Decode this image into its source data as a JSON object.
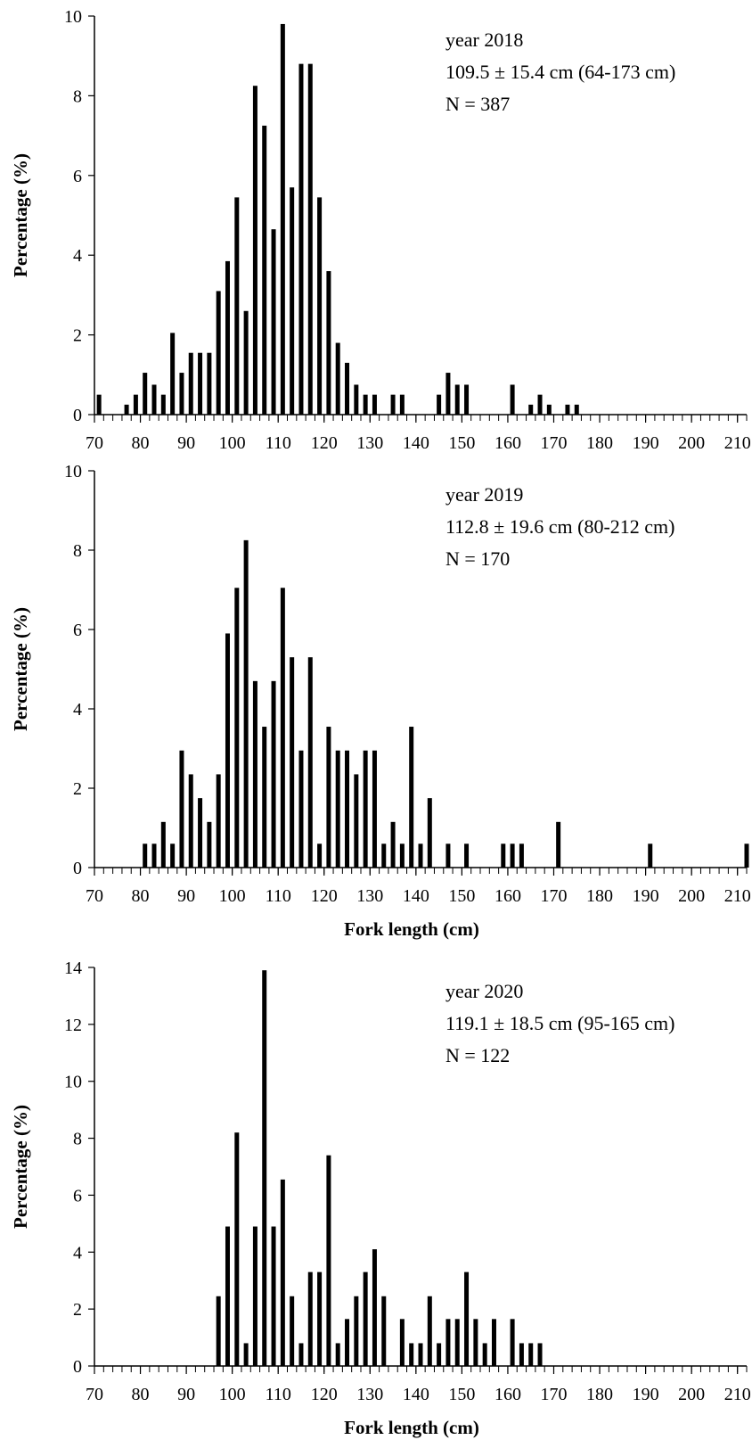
{
  "chart_data": [
    {
      "type": "bar",
      "ylabel": "Percentage (%)",
      "xlabel": "",
      "xlim": [
        70,
        212
      ],
      "ylim": [
        0,
        10
      ],
      "xticks": [
        70,
        80,
        90,
        100,
        110,
        120,
        130,
        140,
        150,
        160,
        170,
        180,
        190,
        200,
        210
      ],
      "yticks": [
        0,
        2,
        4,
        6,
        8,
        10
      ],
      "annotations": [
        "year 2018",
        "109.5 ± 15.4 cm (64-173 cm)",
        "N = 387"
      ],
      "x": [
        71,
        77,
        79,
        81,
        83,
        85,
        87,
        89,
        91,
        93,
        95,
        97,
        99,
        101,
        103,
        105,
        107,
        109,
        111,
        113,
        115,
        117,
        119,
        121,
        123,
        125,
        127,
        129,
        131,
        135,
        137,
        145,
        147,
        149,
        151,
        161,
        165,
        167,
        169,
        173,
        175
      ],
      "values": [
        0.5,
        0.25,
        0.5,
        1.05,
        0.75,
        0.5,
        2.05,
        1.05,
        1.55,
        1.55,
        1.55,
        3.1,
        3.85,
        5.45,
        2.6,
        8.25,
        7.25,
        4.65,
        9.8,
        5.7,
        8.8,
        8.8,
        5.45,
        3.6,
        1.8,
        1.3,
        0.75,
        0.5,
        0.5,
        0.5,
        0.5,
        0.5,
        1.05,
        0.75,
        0.75,
        0.75,
        0.25,
        0.5,
        0.25,
        0.25,
        0.25
      ],
      "grid": false,
      "legend": "none"
    },
    {
      "type": "bar",
      "ylabel": "Percentage (%)",
      "xlabel": "Fork length (cm)",
      "xlim": [
        70,
        212
      ],
      "ylim": [
        0,
        10
      ],
      "xticks": [
        70,
        80,
        90,
        100,
        110,
        120,
        130,
        140,
        150,
        160,
        170,
        180,
        190,
        200,
        210
      ],
      "yticks": [
        0,
        2,
        4,
        6,
        8,
        10
      ],
      "annotations": [
        "year 2019",
        "112.8 ± 19.6 cm (80-212 cm)",
        "N = 170"
      ],
      "x": [
        81,
        83,
        85,
        87,
        89,
        91,
        93,
        95,
        97,
        99,
        101,
        103,
        105,
        107,
        109,
        111,
        113,
        115,
        117,
        119,
        121,
        123,
        125,
        127,
        129,
        131,
        133,
        135,
        137,
        139,
        141,
        143,
        147,
        151,
        159,
        161,
        163,
        171,
        191,
        212
      ],
      "values": [
        0.6,
        0.6,
        1.15,
        0.6,
        2.95,
        2.35,
        1.75,
        1.15,
        2.35,
        5.9,
        7.05,
        8.25,
        4.7,
        3.55,
        4.7,
        7.05,
        5.3,
        2.95,
        5.3,
        0.6,
        3.55,
        2.95,
        2.95,
        2.35,
        2.95,
        2.95,
        0.6,
        1.15,
        0.6,
        3.55,
        0.6,
        1.75,
        0.6,
        0.6,
        0.6,
        0.6,
        0.6,
        1.15,
        0.6,
        0.6
      ],
      "grid": false,
      "legend": "none"
    },
    {
      "type": "bar",
      "ylabel": "Percentage (%)",
      "xlabel": "Fork length (cm)",
      "xlim": [
        70,
        212
      ],
      "ylim": [
        0,
        14
      ],
      "xticks": [
        70,
        80,
        90,
        100,
        110,
        120,
        130,
        140,
        150,
        160,
        170,
        180,
        190,
        200,
        210
      ],
      "yticks": [
        0,
        2,
        4,
        6,
        8,
        10,
        12,
        14
      ],
      "annotations": [
        "year 2020",
        "119.1 ± 18.5 cm (95-165 cm)",
        "N = 122"
      ],
      "x": [
        97,
        99,
        101,
        103,
        105,
        107,
        109,
        111,
        113,
        115,
        117,
        119,
        121,
        123,
        125,
        127,
        129,
        131,
        133,
        137,
        139,
        141,
        143,
        145,
        147,
        149,
        151,
        153,
        155,
        157,
        161,
        163,
        165,
        167
      ],
      "values": [
        2.45,
        4.9,
        8.2,
        0.8,
        4.9,
        13.9,
        4.9,
        6.55,
        2.45,
        0.8,
        3.3,
        3.3,
        7.4,
        0.8,
        1.65,
        2.45,
        3.3,
        4.1,
        2.45,
        1.65,
        0.8,
        0.8,
        2.45,
        0.8,
        1.65,
        1.65,
        3.3,
        1.65,
        0.8,
        1.65,
        1.65,
        0.8,
        0.8,
        0.8
      ],
      "grid": false,
      "legend": "none"
    }
  ],
  "colors": {
    "bars": "#000000",
    "axes": "#000000",
    "background": "#ffffff"
  }
}
